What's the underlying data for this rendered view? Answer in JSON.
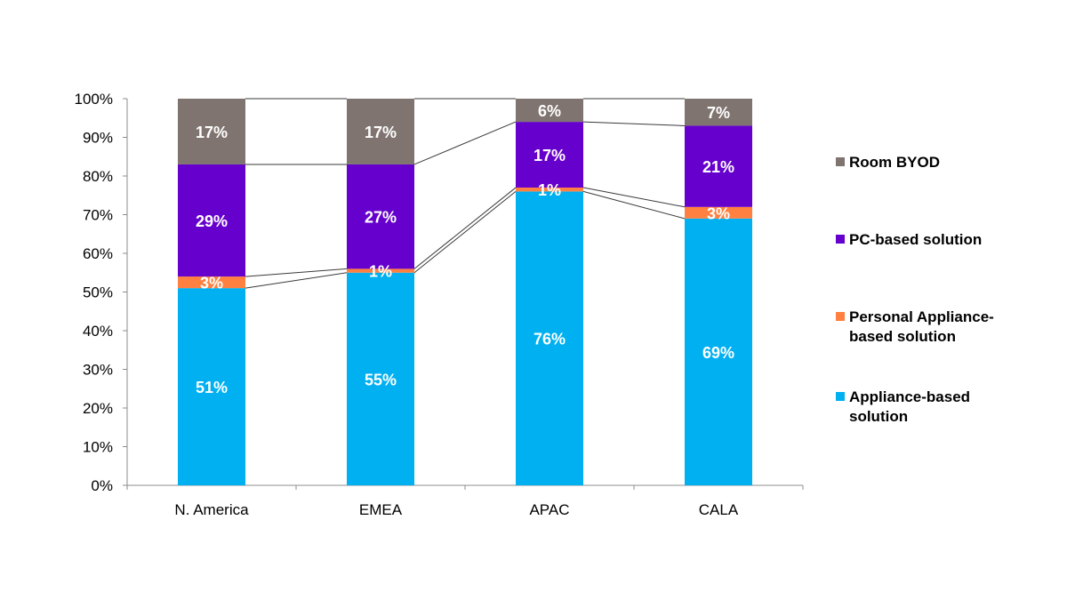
{
  "chart_data": {
    "type": "bar",
    "stacked": true,
    "categories": [
      "N. America",
      "EMEA",
      "APAC",
      "CALA"
    ],
    "ylim": [
      0,
      100
    ],
    "yticks": [
      "0%",
      "10%",
      "20%",
      "30%",
      "40%",
      "50%",
      "60%",
      "70%",
      "80%",
      "90%",
      "100%"
    ],
    "grid": false,
    "legend_position": "right",
    "series": [
      {
        "name": "Appliance-based solution",
        "legend_lines": [
          "Appliance-based",
          "solution"
        ],
        "color": "#00b0f0",
        "values": [
          51,
          55,
          76,
          69
        ],
        "labels": [
          "51%",
          "55%",
          "76%",
          "69%"
        ]
      },
      {
        "name": "Personal Appliance-based solution",
        "legend_lines": [
          "Personal Appliance-",
          "based solution"
        ],
        "color": "#ff8040",
        "values": [
          3,
          1,
          1,
          3
        ],
        "labels": [
          "3%",
          "1%",
          "1%",
          "3%"
        ]
      },
      {
        "name": "PC-based solution",
        "legend_lines": [
          "PC-based solution"
        ],
        "color": "#6600cc",
        "values": [
          29,
          27,
          17,
          21
        ],
        "labels": [
          "29%",
          "27%",
          "17%",
          "21%"
        ]
      },
      {
        "name": "Room BYOD",
        "legend_lines": [
          "Room BYOD"
        ],
        "color": "#7f7470",
        "values": [
          17,
          17,
          6,
          7
        ],
        "labels": [
          "17%",
          "17%",
          "6%",
          "7%"
        ]
      }
    ]
  }
}
